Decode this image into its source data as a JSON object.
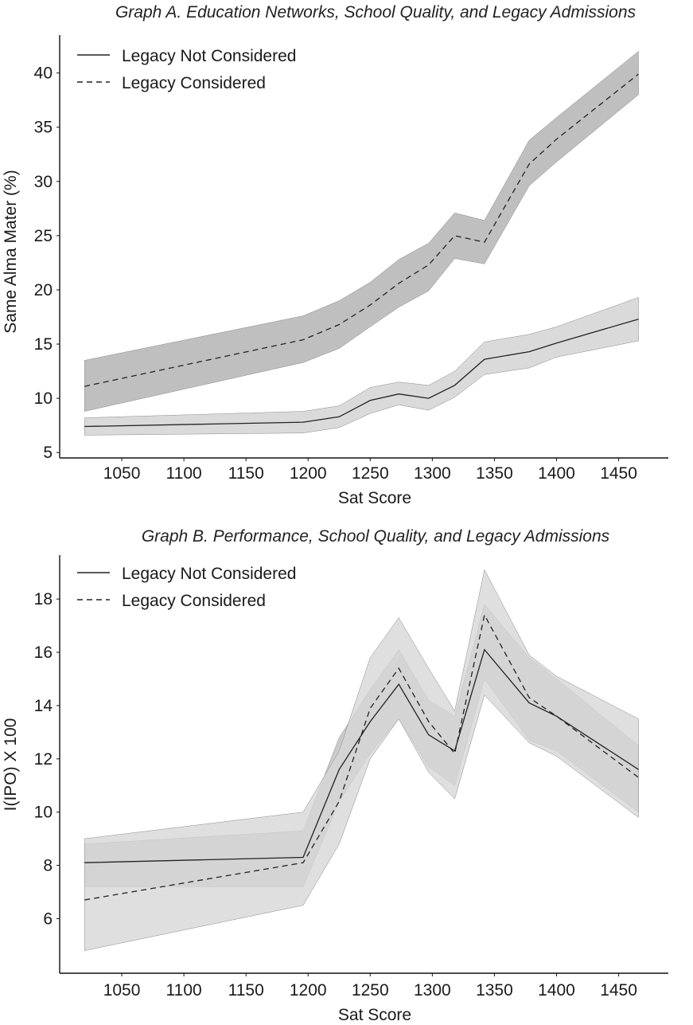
{
  "chart_data": [
    {
      "id": "A",
      "type": "line",
      "title": "Graph A. Education Networks, School Quality, and Legacy Admissions",
      "xlabel": "Sat Score",
      "ylabel": "Same Alma Mater (%)",
      "xlim": [
        1000,
        1490
      ],
      "ylim": [
        4.5,
        43.5
      ],
      "xticks": [
        1050,
        1100,
        1150,
        1200,
        1250,
        1300,
        1350,
        1400,
        1450
      ],
      "yticks": [
        5,
        10,
        15,
        20,
        25,
        30,
        35,
        40
      ],
      "legend_position": "top-left",
      "grid": false,
      "x": [
        1020,
        1196,
        1225,
        1250,
        1273,
        1297,
        1318,
        1342,
        1378,
        1400,
        1466
      ],
      "series": [
        {
          "name": "Legacy Not Considered",
          "style": "solid",
          "band_color": "#d0d0d0",
          "values": [
            7.4,
            7.8,
            8.3,
            9.8,
            10.4,
            10.0,
            11.2,
            13.6,
            14.3,
            15.1,
            17.3
          ],
          "lower": [
            6.6,
            6.8,
            7.3,
            8.6,
            9.4,
            8.9,
            10.1,
            12.2,
            12.8,
            13.8,
            15.3
          ],
          "upper": [
            8.2,
            8.8,
            9.3,
            11.0,
            11.5,
            11.2,
            12.5,
            15.2,
            15.9,
            16.6,
            19.3
          ]
        },
        {
          "name": "Legacy Considered",
          "style": "dashed",
          "band_color": "#adadad",
          "values": [
            11.1,
            15.4,
            16.8,
            18.6,
            20.6,
            22.3,
            25.0,
            24.4,
            31.6,
            33.9,
            39.9
          ],
          "lower": [
            8.8,
            13.3,
            14.6,
            16.6,
            18.4,
            19.9,
            22.9,
            22.4,
            29.6,
            31.8,
            38.0
          ],
          "upper": [
            13.5,
            17.6,
            19.0,
            20.7,
            22.8,
            24.3,
            27.1,
            26.4,
            33.8,
            35.9,
            42.0
          ]
        }
      ]
    },
    {
      "id": "B",
      "type": "line",
      "title": "Graph B. Performance, School Quality, and Legacy Admissions",
      "xlabel": "Sat Score",
      "ylabel": "I(IPO) X 100",
      "xlim": [
        1000,
        1490
      ],
      "ylim": [
        3.95,
        19.65
      ],
      "xticks": [
        1050,
        1100,
        1150,
        1200,
        1250,
        1300,
        1350,
        1400,
        1450
      ],
      "yticks": [
        6,
        8,
        10,
        12,
        14,
        16,
        18
      ],
      "legend_position": "top-left",
      "grid": false,
      "x": [
        1020,
        1196,
        1225,
        1250,
        1273,
        1297,
        1318,
        1342,
        1378,
        1400,
        1466
      ],
      "series": [
        {
          "name": "Legacy Not Considered",
          "style": "solid",
          "band_color": "#bdbdbd",
          "values": [
            8.1,
            8.3,
            11.6,
            13.4,
            14.8,
            12.9,
            12.3,
            16.1,
            14.1,
            13.6,
            11.6
          ],
          "lower": [
            7.2,
            7.2,
            10.4,
            12.2,
            13.5,
            11.7,
            11.0,
            15.0,
            12.7,
            12.3,
            10.0
          ],
          "upper": [
            8.8,
            9.3,
            12.8,
            14.6,
            16.1,
            14.2,
            13.6,
            17.8,
            15.8,
            15.0,
            12.5
          ]
        },
        {
          "name": "Legacy Considered",
          "style": "dashed",
          "band_color": "#d6d6d6",
          "values": [
            6.7,
            8.1,
            10.4,
            13.9,
            15.4,
            13.4,
            12.2,
            17.4,
            14.3,
            13.6,
            11.3
          ],
          "lower": [
            4.8,
            6.5,
            8.8,
            12.0,
            13.5,
            11.5,
            10.5,
            14.4,
            12.6,
            12.1,
            9.8
          ],
          "upper": [
            9.0,
            10.0,
            12.3,
            15.8,
            17.3,
            15.4,
            13.8,
            19.1,
            15.9,
            15.1,
            13.5
          ]
        }
      ]
    }
  ]
}
